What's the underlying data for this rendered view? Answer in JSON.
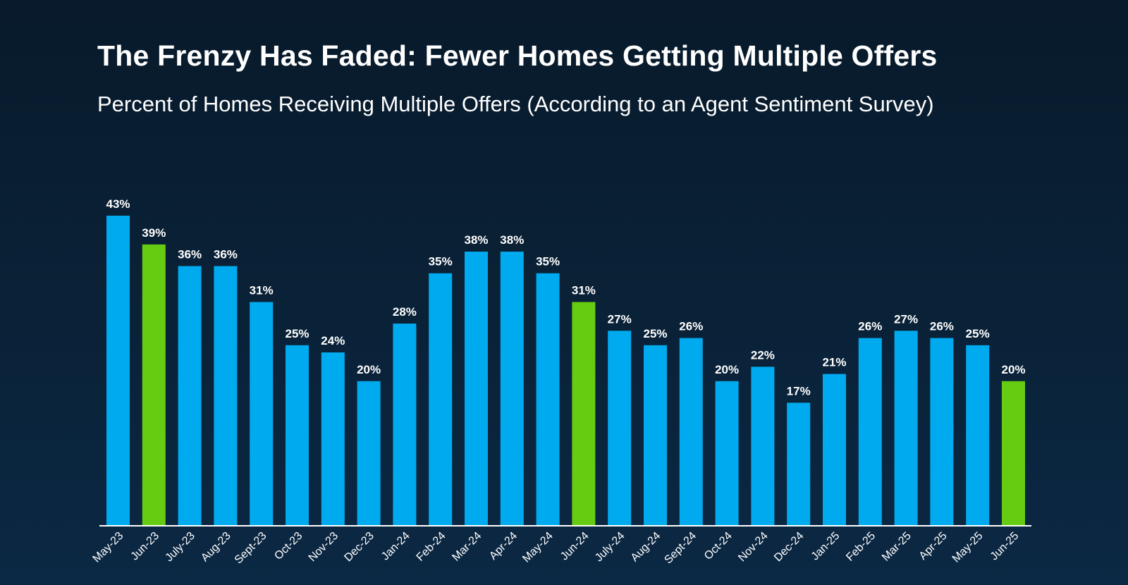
{
  "header": {
    "title": "The Frenzy Has Faded: Fewer Homes Getting Multiple Offers",
    "subtitle": "Percent of Homes Receiving Multiple Offers (According to an Agent Sentiment Survey)"
  },
  "colors": {
    "default_bar": "#00aaee",
    "highlight_bar": "#66cc11",
    "axis": "#ffffff",
    "text": "#ffffff"
  },
  "chart_data": {
    "type": "bar",
    "title": "The Frenzy Has Faded: Fewer Homes Getting Multiple Offers",
    "subtitle": "Percent of Homes Receiving Multiple Offers (According to an Agent Sentiment Survey)",
    "xlabel": "",
    "ylabel": "",
    "ylim": [
      0,
      43
    ],
    "grid": false,
    "legend": "none",
    "categories": [
      "May-23",
      "Jun-23",
      "July-23",
      "Aug-23",
      "Sept-23",
      "Oct-23",
      "Nov-23",
      "Dec-23",
      "Jan-24",
      "Feb-24",
      "Mar-24",
      "Apr-24",
      "May-24",
      "Jun-24",
      "July-24",
      "Aug-24",
      "Sept-24",
      "Oct-24",
      "Nov-24",
      "Dec-24",
      "Jan-25",
      "Feb-25",
      "Mar-25",
      "Apr-25",
      "May-25",
      "Jun-25"
    ],
    "values": [
      43,
      39,
      36,
      36,
      31,
      25,
      24,
      20,
      28,
      35,
      38,
      38,
      35,
      31,
      27,
      25,
      26,
      20,
      22,
      17,
      21,
      26,
      27,
      26,
      25,
      20
    ],
    "value_labels": [
      "43%",
      "39%",
      "36%",
      "36%",
      "31%",
      "25%",
      "24%",
      "20%",
      "28%",
      "35%",
      "38%",
      "38%",
      "35%",
      "31%",
      "27%",
      "25%",
      "26%",
      "20%",
      "22%",
      "17%",
      "21%",
      "26%",
      "27%",
      "26%",
      "25%",
      "20%"
    ],
    "highlighted": [
      "Jun-23",
      "Jun-24",
      "Jun-25"
    ]
  }
}
